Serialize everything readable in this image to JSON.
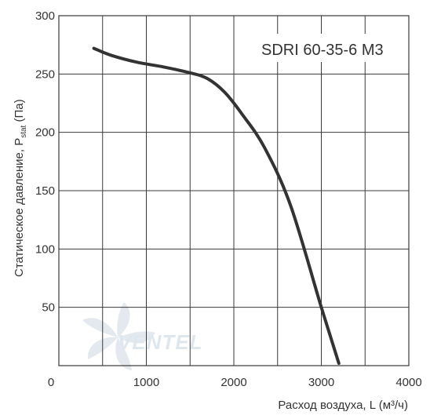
{
  "chart_data": {
    "type": "line",
    "title": "",
    "model_label": "SDRI 60-35-6 M3",
    "xlabel": "Расход воздуха, L (м³/ч)",
    "ylabel_main": "Статическое давление, P",
    "ylabel_sub": "stat",
    "ylabel_end": " (Па)",
    "xlim": [
      0,
      4000
    ],
    "ylim": [
      0,
      300
    ],
    "x_ticks": [
      0,
      1000,
      2000,
      3000,
      4000
    ],
    "x_tick_labels": [
      "0",
      "1000",
      "2000",
      "3000",
      "4000"
    ],
    "y_ticks": [
      50,
      100,
      150,
      200,
      250,
      300
    ],
    "y_tick_labels": [
      "50",
      "100",
      "150",
      "200",
      "250",
      "300"
    ],
    "grid": true,
    "series": [
      {
        "x": [
          400,
          600,
          900,
          1200,
          1500,
          1700,
          1900,
          2100,
          2350,
          2650,
          3000,
          3200
        ],
        "y": [
          272,
          266,
          260,
          256,
          251,
          246,
          234,
          215,
          187,
          137,
          50,
          2
        ],
        "color": "#333333"
      }
    ],
    "watermark": "VENTEL"
  }
}
